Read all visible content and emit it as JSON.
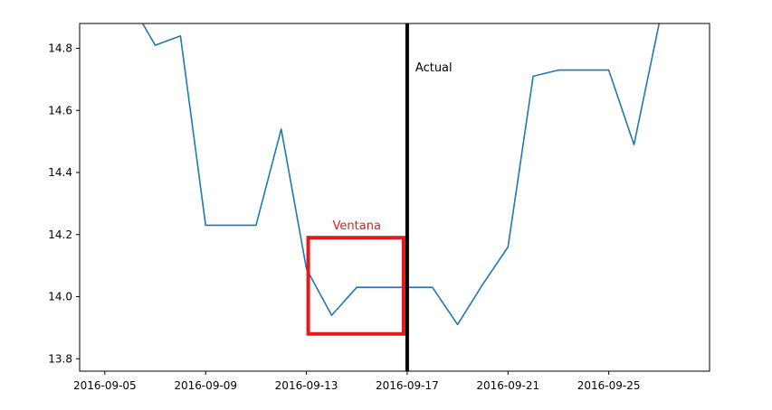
{
  "chart_data": {
    "type": "line",
    "title": "",
    "xlabel": "",
    "ylabel": "",
    "ylim": [
      13.76,
      14.88
    ],
    "xlim": [
      "2016-09-04",
      "2016-09-29"
    ],
    "grid": false,
    "x_ticks": [
      "2016-09-05",
      "2016-09-09",
      "2016-09-13",
      "2016-09-17",
      "2016-09-21",
      "2016-09-25"
    ],
    "y_ticks": [
      "13.8",
      "14.0",
      "14.2",
      "14.4",
      "14.6",
      "14.8"
    ],
    "series": [
      {
        "color": "#1f77b4",
        "x": [
          "2016-09-06",
          "2016-09-07",
          "2016-09-08",
          "2016-09-09",
          "2016-09-10",
          "2016-09-11",
          "2016-09-12",
          "2016-09-13",
          "2016-09-14",
          "2016-09-15",
          "2016-09-16",
          "2016-09-17",
          "2016-09-18",
          "2016-09-19",
          "2016-09-20",
          "2016-09-21",
          "2016-09-22",
          "2016-09-23",
          "2016-09-24",
          "2016-09-25",
          "2016-09-26",
          "2016-09-27",
          "2016-09-28"
        ],
        "values": [
          14.95,
          14.81,
          14.84,
          14.23,
          14.23,
          14.23,
          14.54,
          14.09,
          13.94,
          14.03,
          14.03,
          14.03,
          14.03,
          13.91,
          14.04,
          14.16,
          14.71,
          14.73,
          14.73,
          14.73,
          14.49,
          14.88,
          14.95
        ]
      }
    ],
    "annotations": [
      {
        "type": "vline",
        "x": "2016-09-17",
        "color": "#000000",
        "label": "Actual",
        "label_y": 14.74
      },
      {
        "type": "rect",
        "x_start": "2016-09-13",
        "x_end": "2016-09-17",
        "y_start": 13.88,
        "y_end": 14.19,
        "color": "#e31a1c",
        "label": "Ventana"
      }
    ]
  }
}
